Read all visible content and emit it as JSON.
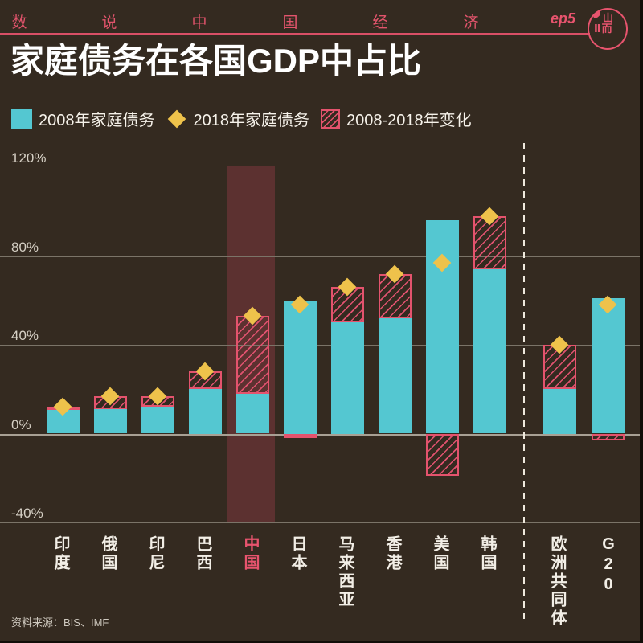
{
  "header": {
    "series_title_chars": [
      "数",
      "说",
      "中",
      "国",
      "经",
      "济"
    ],
    "series_title": "数说中国经济",
    "episode": "ep5",
    "logo_glyphs": [
      "山",
      "Ⅱ而"
    ]
  },
  "title": "家庭债务在各国GDP中占比",
  "legend": [
    {
      "swatch": "cyan-square",
      "label": "2008年家庭债务"
    },
    {
      "swatch": "gold-diamond",
      "label": "2018年家庭债务"
    },
    {
      "swatch": "pink-hatch",
      "label": "2008-2018年变化"
    }
  ],
  "source": "资料来源：BIS、IMF",
  "colors": {
    "background": "#342a20",
    "accent_pink": "#e4536d",
    "bar_cyan": "#54c7d1",
    "marker_gold": "#eec24b",
    "china_band": "#5c3130",
    "text_white": "#f6f2ea",
    "gridline": "#7b7468"
  },
  "chart_data": {
    "type": "bar",
    "title": "家庭债务在各国GDP中占比",
    "categories": [
      "印度",
      "俄国",
      "印尼",
      "巴西",
      "中国",
      "日本",
      "马来西亚",
      "香港",
      "美国",
      "韩国",
      "欧洲共同体",
      "G20"
    ],
    "series": [
      {
        "name": "2008年家庭债务",
        "style": "cyan-bar",
        "values": [
          11,
          11,
          12,
          20,
          18,
          60,
          50,
          52,
          96,
          74,
          20,
          61
        ]
      },
      {
        "name": "2018年家庭债务",
        "style": "gold-diamond-marker",
        "values": [
          12,
          17,
          17,
          28,
          53,
          58,
          66,
          72,
          77,
          98,
          40,
          58
        ]
      },
      {
        "name": "2008-2018年变化",
        "style": "pink-hatch-overlay",
        "values": [
          1,
          6,
          5,
          8,
          35,
          -2,
          16,
          20,
          -19,
          24,
          20,
          -3
        ]
      }
    ],
    "y_unit": "%",
    "ylim": [
      -40,
      120
    ],
    "y_ticks": [
      120,
      80,
      40,
      0,
      -40
    ],
    "y_tick_labels": [
      "120%",
      "80%",
      "40%",
      "0%",
      "-40%"
    ],
    "grid": true,
    "legend_position": "top",
    "highlight_category": "中国",
    "separator_before_category": "欧洲共同体",
    "note": "负变化以零轴下方斜纹方块表示"
  }
}
